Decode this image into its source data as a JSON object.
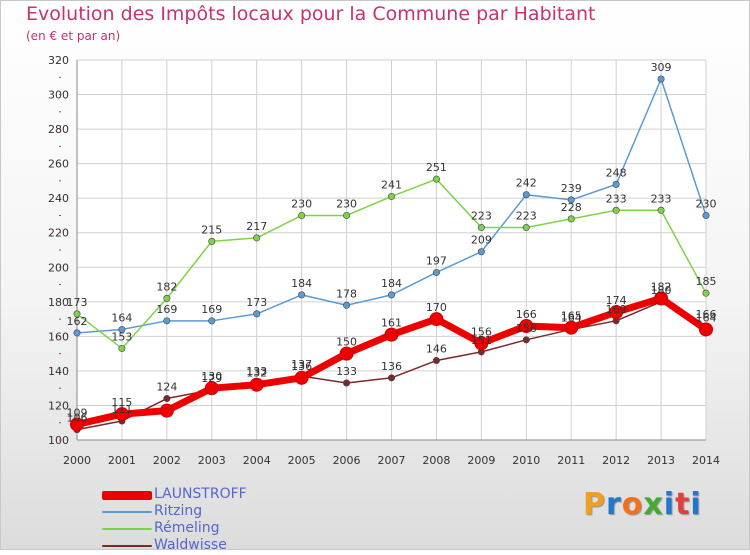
{
  "chart_data": {
    "type": "line",
    "title": "Evolution des Impôts locaux pour la Commune par Habitant",
    "subtitle": "(en € et par an)",
    "x": [
      "2000",
      "2001",
      "2002",
      "2003",
      "2004",
      "2005",
      "2006",
      "2007",
      "2008",
      "2009",
      "2010",
      "2011",
      "2012",
      "2013",
      "2014"
    ],
    "ylim": [
      100,
      320
    ],
    "yticks": [
      100,
      120,
      140,
      160,
      180,
      200,
      220,
      240,
      260,
      280,
      300,
      320
    ],
    "grid": true,
    "legend_position": "bottom-left",
    "series": [
      {
        "name": "LAUNSTROFF",
        "color": "#ee0000",
        "values": [
          109,
          115,
          117,
          130,
          132,
          136,
          150,
          161,
          170,
          156,
          166,
          165,
          174,
          182,
          164
        ],
        "labels": [
          "109",
          "115",
          "",
          "130",
          "132",
          "136",
          "150",
          "161",
          "170",
          "156",
          "166",
          "165",
          "174",
          "182",
          "164"
        ]
      },
      {
        "name": "Ritzing",
        "color": "#5b9bd5",
        "values": [
          162,
          164,
          169,
          169,
          173,
          184,
          178,
          184,
          197,
          209,
          242,
          239,
          248,
          309,
          230
        ],
        "labels": [
          "162",
          "164",
          "169",
          "169",
          "173",
          "184",
          "178",
          "184",
          "197",
          "209",
          "242",
          "239",
          "248",
          "309",
          "230"
        ]
      },
      {
        "name": "Rémeling",
        "color": "#7ed348",
        "values": [
          173,
          153,
          182,
          215,
          217,
          230,
          230,
          241,
          251,
          223,
          223,
          228,
          233,
          233,
          185
        ],
        "labels": [
          "173",
          "153",
          "182",
          "215",
          "217",
          "230",
          "230",
          "241",
          "251",
          "223",
          "223",
          "228",
          "233",
          "233",
          "185"
        ]
      },
      {
        "name": "Waldwisse",
        "color": "#7a2a2a",
        "values": [
          106,
          111,
          124,
          129,
          133,
          137,
          133,
          136,
          146,
          151,
          158,
          164,
          169,
          180,
          166
        ],
        "labels": [
          "106",
          "111",
          "124",
          "129",
          "133",
          "137",
          "133",
          "136",
          "146",
          "151",
          "158",
          "164",
          "169",
          "180",
          "166"
        ]
      }
    ]
  },
  "logo": {
    "text": "Proxiti"
  }
}
